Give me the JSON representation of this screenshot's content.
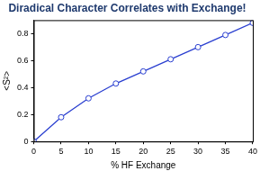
{
  "chart_data": {
    "type": "line",
    "title": "Diradical Character Correlates with Exchange!",
    "x_label": "% HF Exchange",
    "y_label": "<S²>",
    "x": [
      0,
      5,
      10,
      15,
      20,
      25,
      30,
      35,
      40
    ],
    "values": [
      0.0,
      0.18,
      0.32,
      0.43,
      0.52,
      0.61,
      0.7,
      0.79,
      0.88
    ],
    "color": "#2a3fd0",
    "marker": "circle",
    "xlim": [
      0,
      40
    ],
    "xticks": [
      0,
      5,
      10,
      15,
      20,
      25,
      30,
      35,
      40
    ],
    "ylim": [
      0,
      0.9
    ],
    "yticks": [
      0,
      0.2,
      0.4,
      0.6,
      0.8
    ],
    "grid": false
  }
}
